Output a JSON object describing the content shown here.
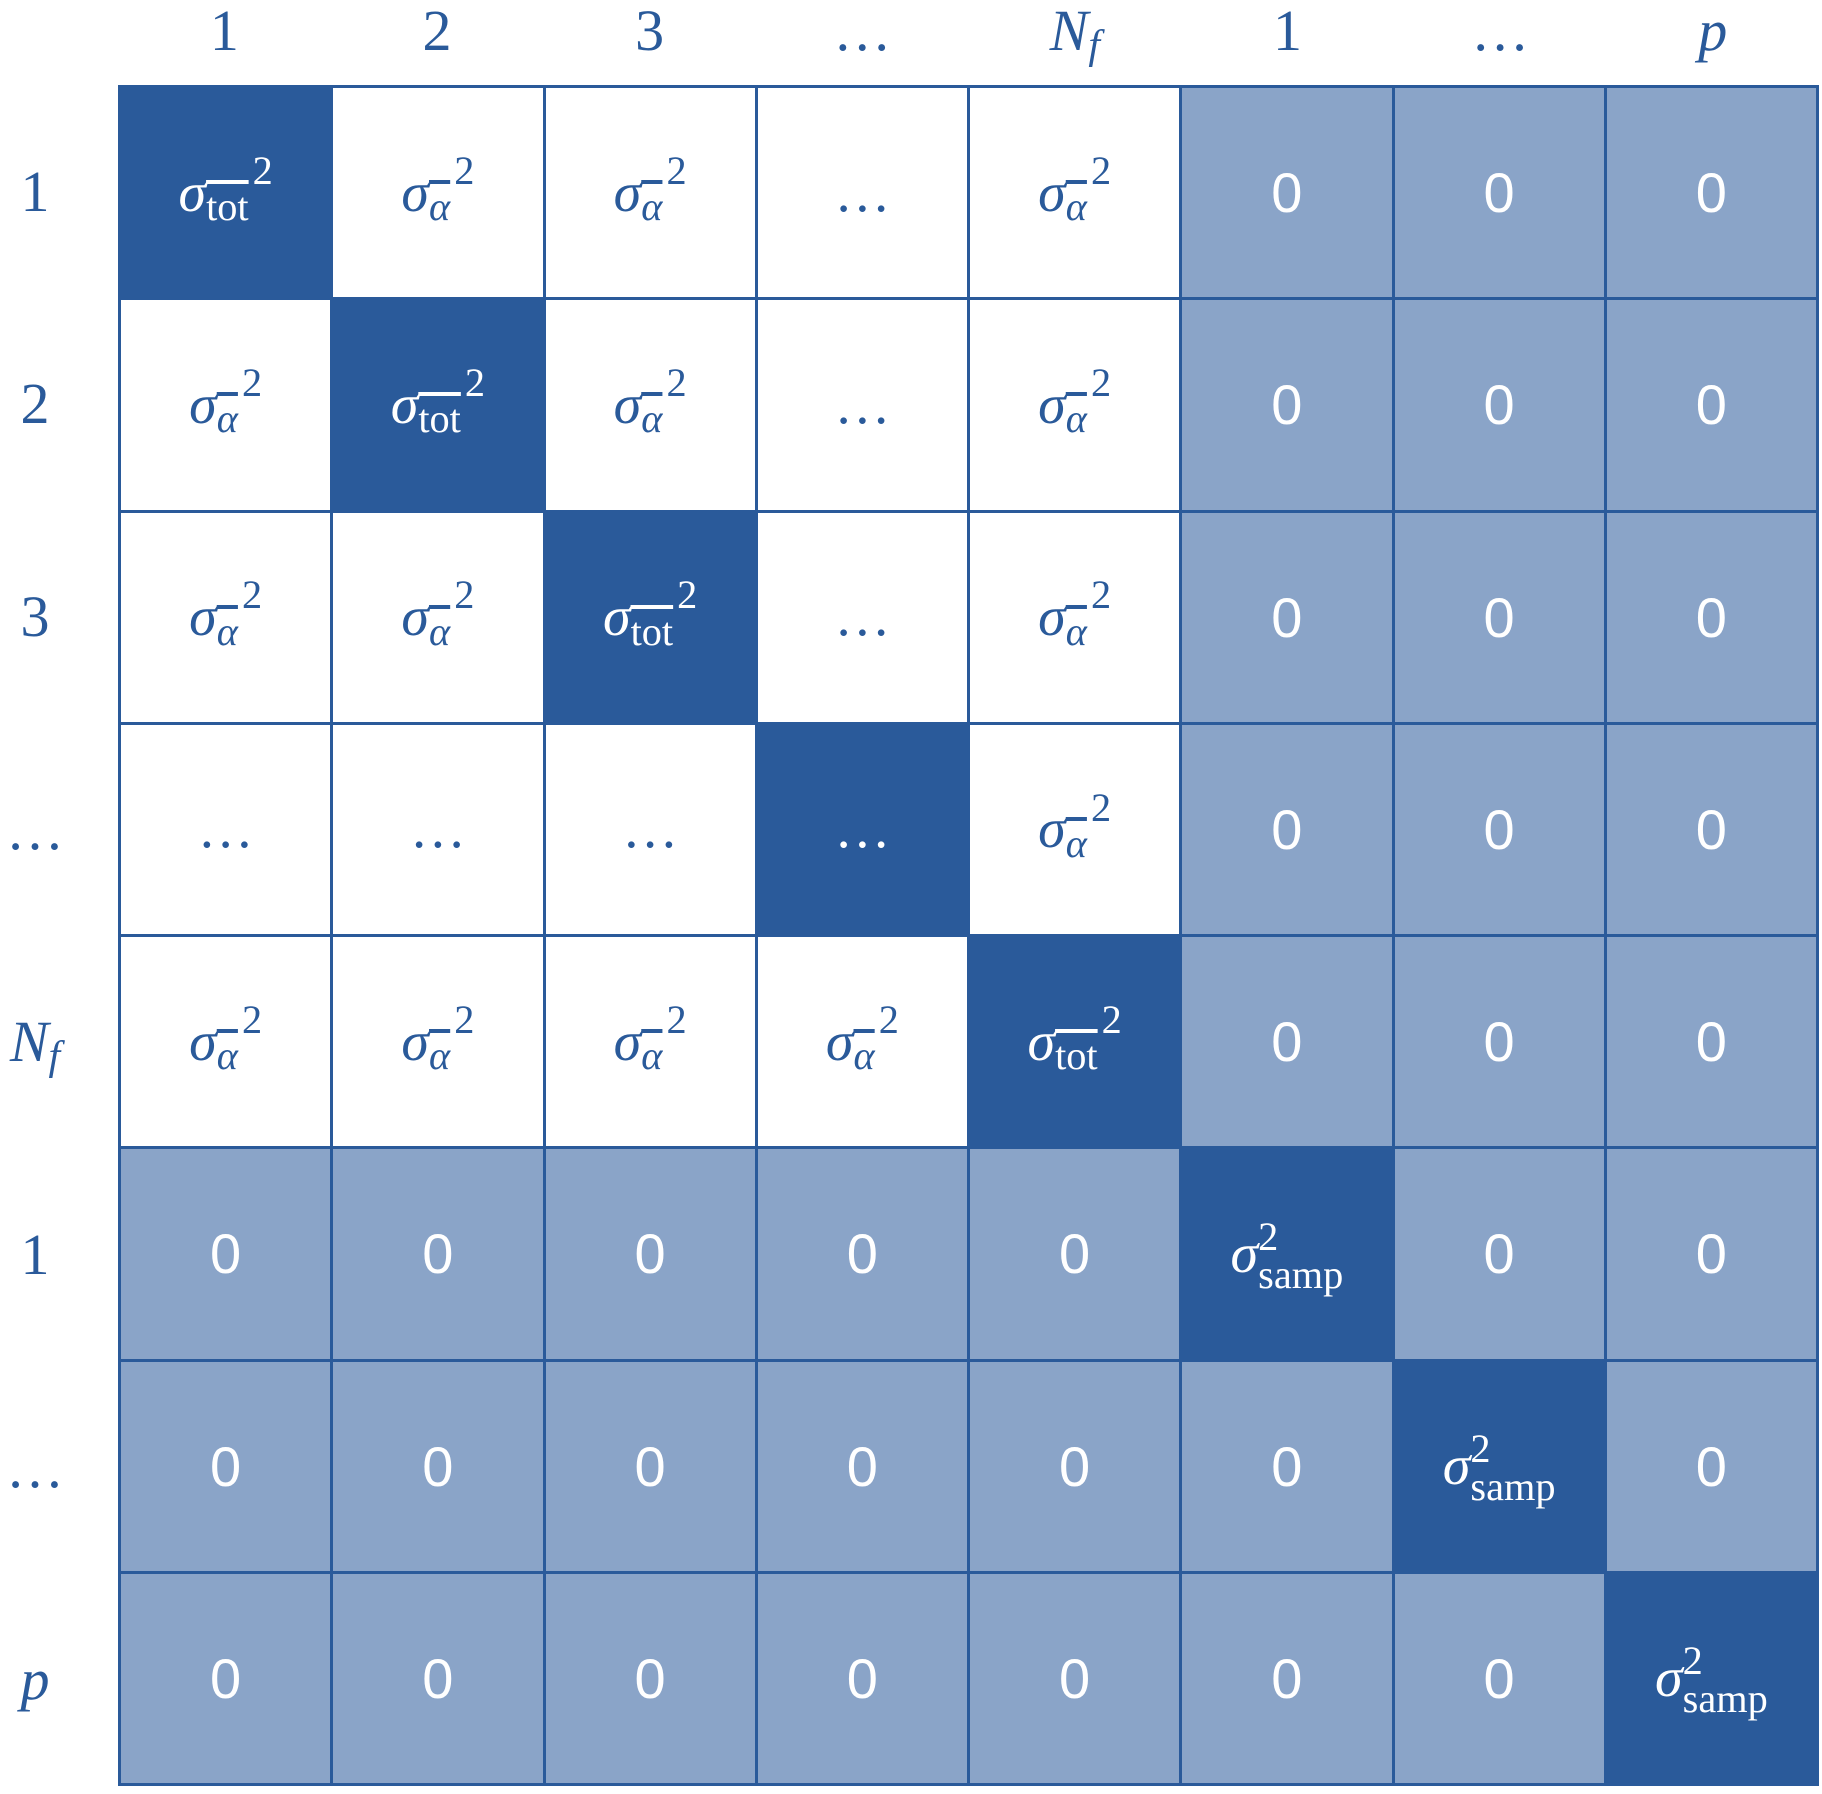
{
  "column_headers": [
    "1",
    "2",
    "3",
    "…",
    {
      "base": "N",
      "sub": "f"
    },
    "1",
    "…",
    "p"
  ],
  "row_headers": [
    "1",
    "2",
    "3",
    "…",
    {
      "base": "N",
      "sub": "f"
    },
    "1",
    "…",
    "p"
  ],
  "rows": [
    [
      {
        "base": "σ",
        "sub": "tot",
        "sup": "2",
        "sub_overline": true
      },
      {
        "base": "σ",
        "sub": "α",
        "sup": "2",
        "sub_overline": true
      },
      {
        "base": "σ",
        "sub": "α",
        "sup": "2",
        "sub_overline": true
      },
      "…",
      {
        "base": "σ",
        "sub": "α",
        "sup": "2",
        "sub_overline": true
      },
      "0",
      "0",
      "0"
    ],
    [
      {
        "base": "σ",
        "sub": "α",
        "sup": "2",
        "sub_overline": true
      },
      {
        "base": "σ",
        "sub": "tot",
        "sup": "2",
        "sub_overline": true
      },
      {
        "base": "σ",
        "sub": "α",
        "sup": "2",
        "sub_overline": true
      },
      "…",
      {
        "base": "σ",
        "sub": "α",
        "sup": "2",
        "sub_overline": true
      },
      "0",
      "0",
      "0"
    ],
    [
      {
        "base": "σ",
        "sub": "α",
        "sup": "2",
        "sub_overline": true
      },
      {
        "base": "σ",
        "sub": "α",
        "sup": "2",
        "sub_overline": true
      },
      {
        "base": "σ",
        "sub": "tot",
        "sup": "2",
        "sub_overline": true
      },
      "…",
      {
        "base": "σ",
        "sub": "α",
        "sup": "2",
        "sub_overline": true
      },
      "0",
      "0",
      "0"
    ],
    [
      "…",
      "…",
      "…",
      "…",
      {
        "base": "σ",
        "sub": "α",
        "sup": "2",
        "sub_overline": true
      },
      "0",
      "0",
      "0"
    ],
    [
      {
        "base": "σ",
        "sub": "α",
        "sup": "2",
        "sub_overline": true
      },
      {
        "base": "σ",
        "sub": "α",
        "sup": "2",
        "sub_overline": true
      },
      {
        "base": "σ",
        "sub": "α",
        "sup": "2",
        "sub_overline": true
      },
      {
        "base": "σ",
        "sub": "α",
        "sup": "2",
        "sub_overline": true
      },
      {
        "base": "σ",
        "sub": "tot",
        "sup": "2",
        "sub_overline": true
      },
      "0",
      "0",
      "0"
    ],
    [
      "0",
      "0",
      "0",
      "0",
      "0",
      {
        "base": "σ",
        "sub": "samp",
        "sup": "2"
      },
      "0",
      "0"
    ],
    [
      "0",
      "0",
      "0",
      "0",
      "0",
      "0",
      {
        "base": "σ",
        "sub": "samp",
        "sup": "2"
      },
      "0"
    ],
    [
      "0",
      "0",
      "0",
      "0",
      "0",
      "0",
      "0",
      {
        "base": "σ",
        "sub": "samp",
        "sup": "2"
      }
    ]
  ]
}
